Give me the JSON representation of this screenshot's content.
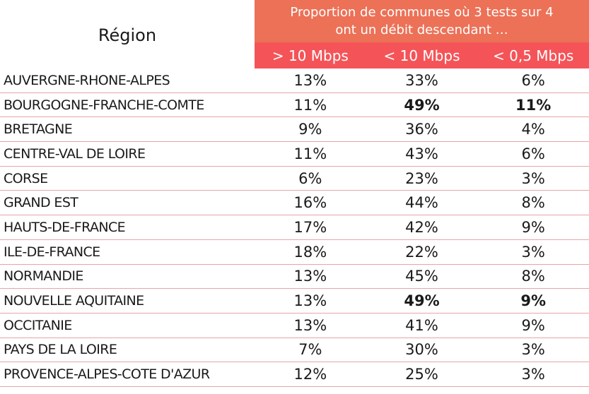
{
  "header": {
    "region_label": "Région",
    "title_line1": "Proportion de communes où 3 tests sur 4",
    "title_line2": "ont un débit descendant …",
    "columns": [
      "> 10 Mbps",
      "< 10 Mbps",
      "< 0,5 Mbps"
    ]
  },
  "colors": {
    "title_bg": "#ec7157",
    "columns_bg": "#f45458",
    "row_border": "#e5a6a6"
  },
  "rows": [
    {
      "region": "AUVERGNE-RHONE-ALPES",
      "gt10": "13%",
      "lt10": "33%",
      "lt05": "6%",
      "bold_lt10": false,
      "bold_lt05": false
    },
    {
      "region": "BOURGOGNE-FRANCHE-COMTE",
      "gt10": "11%",
      "lt10": "49%",
      "lt05": "11%",
      "bold_lt10": true,
      "bold_lt05": true
    },
    {
      "region": "BRETAGNE",
      "gt10": "9%",
      "lt10": "36%",
      "lt05": "4%",
      "bold_lt10": false,
      "bold_lt05": false
    },
    {
      "region": "CENTRE-VAL DE LOIRE",
      "gt10": "11%",
      "lt10": "43%",
      "lt05": "6%",
      "bold_lt10": false,
      "bold_lt05": false
    },
    {
      "region": "CORSE",
      "gt10": "6%",
      "lt10": "23%",
      "lt05": "3%",
      "bold_lt10": false,
      "bold_lt05": false
    },
    {
      "region": "GRAND EST",
      "gt10": "16%",
      "lt10": "44%",
      "lt05": "8%",
      "bold_lt10": false,
      "bold_lt05": false
    },
    {
      "region": "HAUTS-DE-FRANCE",
      "gt10": "17%",
      "lt10": "42%",
      "lt05": "9%",
      "bold_lt10": false,
      "bold_lt05": false
    },
    {
      "region": "ILE-DE-FRANCE",
      "gt10": "18%",
      "lt10": "22%",
      "lt05": "3%",
      "bold_lt10": false,
      "bold_lt05": false
    },
    {
      "region": "NORMANDIE",
      "gt10": "13%",
      "lt10": "45%",
      "lt05": "8%",
      "bold_lt10": false,
      "bold_lt05": false
    },
    {
      "region": "NOUVELLE AQUITAINE",
      "gt10": "13%",
      "lt10": "49%",
      "lt05": "9%",
      "bold_lt10": true,
      "bold_lt05": true
    },
    {
      "region": "OCCITANIE",
      "gt10": "13%",
      "lt10": "41%",
      "lt05": "9%",
      "bold_lt10": false,
      "bold_lt05": false
    },
    {
      "region": "PAYS DE LA LOIRE",
      "gt10": "7%",
      "lt10": "30%",
      "lt05": "3%",
      "bold_lt10": false,
      "bold_lt05": false
    },
    {
      "region": "PROVENCE-ALPES-COTE D'AZUR",
      "gt10": "12%",
      "lt10": "25%",
      "lt05": "3%",
      "bold_lt10": false,
      "bold_lt05": false
    }
  ]
}
